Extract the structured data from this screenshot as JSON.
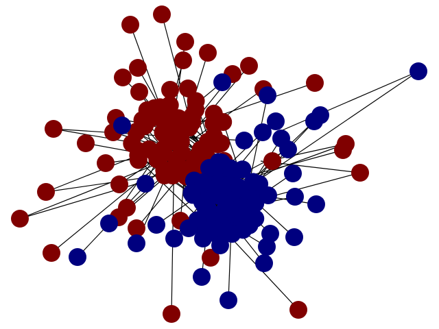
{
  "diagram": {
    "type": "network-graph",
    "community_colors": {
      "red": "#800000",
      "blue": "#00007f"
    },
    "edge_color": "#000000",
    "background": "#ffffff",
    "communities": [
      {
        "id": "red",
        "color_key": "red"
      },
      {
        "id": "blue",
        "color_key": "blue"
      }
    ]
  }
}
